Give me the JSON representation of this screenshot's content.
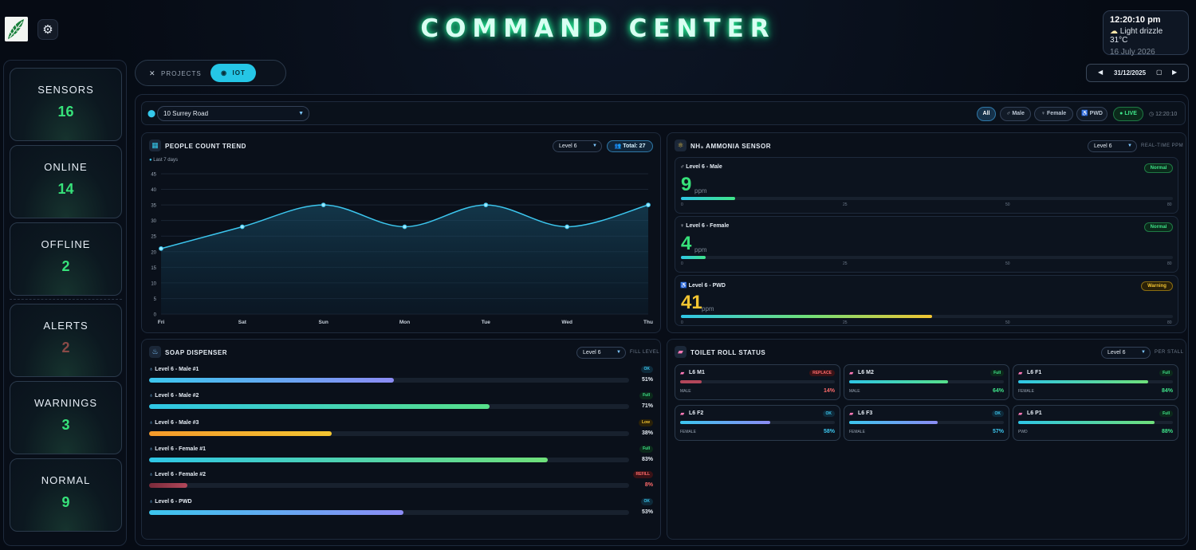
{
  "header": {
    "title": "COMMAND CENTER"
  },
  "clock": {
    "time": "12:20:10 pm",
    "weather": "Light drizzle 31°C",
    "date": "16 July 2026"
  },
  "stats": [
    {
      "label": "SENSORS",
      "value": "16"
    },
    {
      "label": "ONLINE",
      "value": "14"
    },
    {
      "label": "OFFLINE",
      "value": "2"
    },
    {
      "label": "ALERTS",
      "value": "2"
    },
    {
      "label": "WARNINGS",
      "value": "3"
    },
    {
      "label": "NORMAL",
      "value": "9"
    }
  ],
  "modes": {
    "projects": "PROJECTS",
    "iot": "IOT"
  },
  "date_picker": {
    "value": "31/12/2025"
  },
  "location": {
    "selected": "10 Surrey Road"
  },
  "filters": {
    "all": "All",
    "male": "Male",
    "female": "Female",
    "pwd": "PWD",
    "live": "LIVE",
    "time": "12:20:10"
  },
  "people": {
    "title": "PEOPLE COUNT TREND",
    "level": "Level 6",
    "total": "Total: 27",
    "legend": "Last 7 days"
  },
  "chart_data": {
    "type": "line",
    "categories": [
      "Fri",
      "Sat",
      "Sun",
      "Mon",
      "Tue",
      "Wed",
      "Thu"
    ],
    "series": [
      {
        "values": [
          21,
          28,
          35,
          28,
          35,
          28,
          35
        ]
      }
    ],
    "ylim": [
      0,
      45
    ],
    "yticks": [
      0,
      5,
      10,
      15,
      20,
      25,
      30,
      35,
      40,
      45
    ],
    "legend": "Last 7 days",
    "grid": true,
    "color": "#3cc6ee"
  },
  "nh3": {
    "title": "NH₃ AMMONIA SENSOR",
    "level": "Level 6",
    "sub": "REAL-TIME PPM",
    "unit": "ppm",
    "ticks": [
      "0",
      "25",
      "50",
      "80"
    ],
    "sensors": [
      {
        "name": "Level 6 - Male",
        "value": "9",
        "status": "Normal",
        "fill": 0.11
      },
      {
        "name": "Level 6 - Female",
        "value": "4",
        "status": "Normal",
        "fill": 0.05
      },
      {
        "name": "Level 6 - PWD",
        "value": "41",
        "status": "Warning",
        "fill": 0.51
      }
    ]
  },
  "soap": {
    "title": "SOAP DISPENSER",
    "level": "Level 6",
    "sub": "FILL LEVEL",
    "items": [
      {
        "name": "Level 6 - Male #1",
        "status": "OK",
        "pct": "51%",
        "fill": 0.51
      },
      {
        "name": "Level 6 - Male #2",
        "status": "Full",
        "pct": "71%",
        "fill": 0.71
      },
      {
        "name": "Level 6 - Male #3",
        "status": "Low",
        "pct": "38%",
        "fill": 0.38
      },
      {
        "name": "Level 6 - Female #1",
        "status": "Full",
        "pct": "83%",
        "fill": 0.83
      },
      {
        "name": "Level 6 - Female #2",
        "status": "REFILL",
        "pct": "8%",
        "fill": 0.08
      },
      {
        "name": "Level 6 - PWD",
        "status": "OK",
        "pct": "53%",
        "fill": 0.53
      }
    ]
  },
  "toilet": {
    "title": "TOILET ROLL STATUS",
    "level": "Level 6",
    "sub": "PER STALL",
    "stalls": [
      {
        "name": "L6 M1",
        "status": "REPLACE",
        "type": "MALE",
        "pct": "14%",
        "fill": 0.14
      },
      {
        "name": "L6 M2",
        "status": "Full",
        "type": "MALE",
        "pct": "64%",
        "fill": 0.64
      },
      {
        "name": "L6 F1",
        "status": "Full",
        "type": "FEMALE",
        "pct": "84%",
        "fill": 0.84
      },
      {
        "name": "L6 F2",
        "status": "OK",
        "type": "FEMALE",
        "pct": "58%",
        "fill": 0.58
      },
      {
        "name": "L6 F3",
        "status": "OK",
        "type": "FEMALE",
        "pct": "57%",
        "fill": 0.57
      },
      {
        "name": "L6 P1",
        "status": "Full",
        "type": "PWD",
        "pct": "88%",
        "fill": 0.88
      }
    ]
  }
}
